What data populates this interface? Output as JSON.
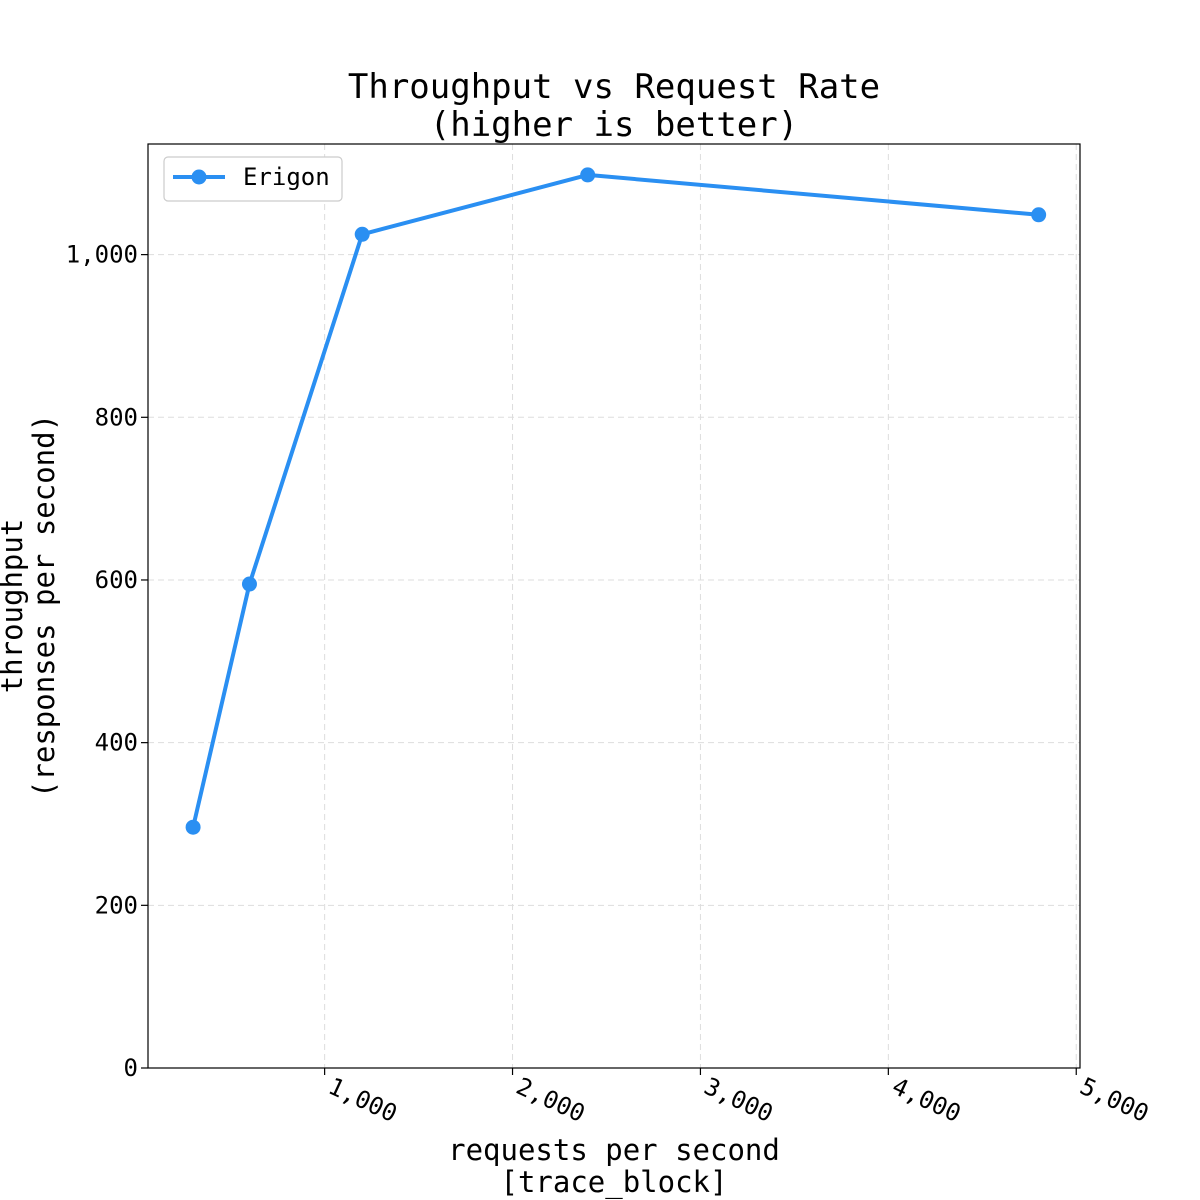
{
  "chart_data": {
    "type": "line",
    "title": "Throughput vs Request Rate",
    "subtitle": "(higher is better)",
    "xlabel": "requests per second",
    "xlabel_sub": "[trace_block]",
    "ylabel": "throughput",
    "ylabel_sub": "(responses per second)",
    "xlim": [
      60,
      5020
    ],
    "ylim": [
      0,
      1136
    ],
    "xticks": [
      1000,
      2000,
      3000,
      4000,
      5000
    ],
    "xtick_labels": [
      "1,000",
      "2,000",
      "3,000",
      "4,000",
      "5,000"
    ],
    "yticks": [
      0,
      200,
      400,
      600,
      800,
      1000
    ],
    "ytick_labels": [
      "0",
      "200",
      "400",
      "600",
      "800",
      "1,000"
    ],
    "grid": true,
    "legend_position": "top-left",
    "series": [
      {
        "name": "Erigon",
        "color": "#2a8ff2",
        "x": [
          300,
          600,
          1200,
          2400,
          4800
        ],
        "y": [
          296,
          595,
          1025,
          1098,
          1049
        ]
      }
    ]
  }
}
